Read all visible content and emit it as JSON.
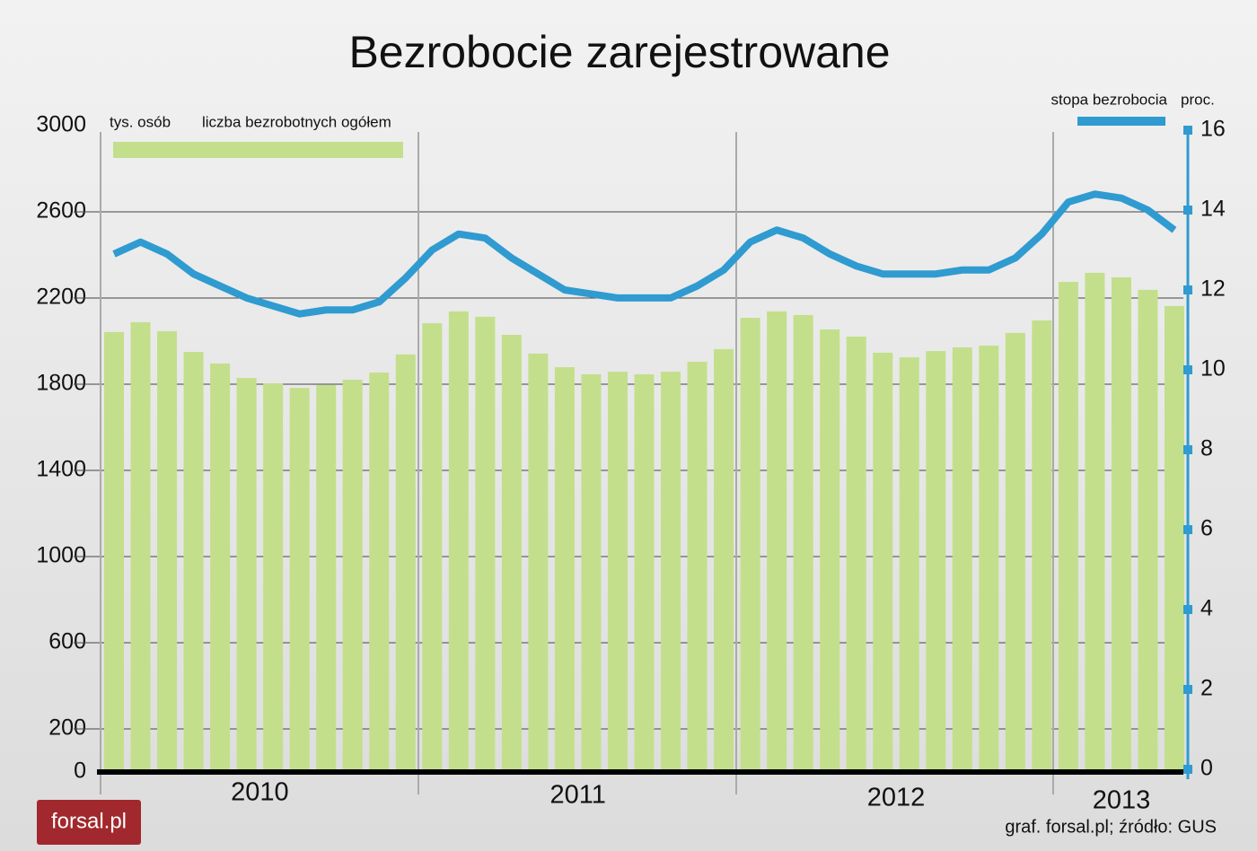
{
  "chart_data": {
    "type": "bar_line",
    "title": "Bezrobocie zarejestrowane",
    "y_label": "tys. osób",
    "y2_label": "proc.",
    "year_labels": [
      "2010",
      "2011",
      "2012",
      "2013"
    ],
    "series": [
      {
        "name": "liczba bezrobotnych ogółem",
        "color": "#c3df8c",
        "type": "bar",
        "values": [
          2042,
          2088,
          2046,
          1950,
          1896,
          1829,
          1804,
          1783,
          1796,
          1821,
          1854,
          1938,
          2083,
          2138,
          2113,
          2029,
          1942,
          1879,
          1846,
          1858,
          1846,
          1858,
          1904,
          1963,
          2108,
          2138,
          2121,
          2054,
          2021,
          1946,
          1925,
          1954,
          1971,
          1979,
          2038,
          2096,
          2275,
          2317,
          2296,
          2238,
          2163
        ]
      },
      {
        "name": "stopa bezrobocia",
        "color": "#2f9bd0",
        "type": "line",
        "axis": "y2",
        "values": [
          12.9,
          13.2,
          12.9,
          12.4,
          12.1,
          11.8,
          11.6,
          11.4,
          11.5,
          11.5,
          11.7,
          12.3,
          13.0,
          13.4,
          13.3,
          12.8,
          12.4,
          12.0,
          11.9,
          11.8,
          11.8,
          11.8,
          12.1,
          12.5,
          13.2,
          13.5,
          13.3,
          12.9,
          12.6,
          12.4,
          12.4,
          12.4,
          12.5,
          12.5,
          12.8,
          13.4,
          14.2,
          14.4,
          14.3,
          14.0,
          13.5
        ]
      }
    ],
    "ylim": [
      0,
      3000
    ],
    "yticks": [
      0,
      200,
      600,
      1000,
      1400,
      1800,
      2200,
      2600,
      3000
    ],
    "y2lim": [
      0,
      16
    ],
    "y2ticks": [
      0,
      2,
      4,
      6,
      8,
      10,
      12,
      14,
      16
    ],
    "grid": true,
    "source": "graf. forsal.pl; źródło: GUS",
    "logo": "forsal.pl"
  }
}
